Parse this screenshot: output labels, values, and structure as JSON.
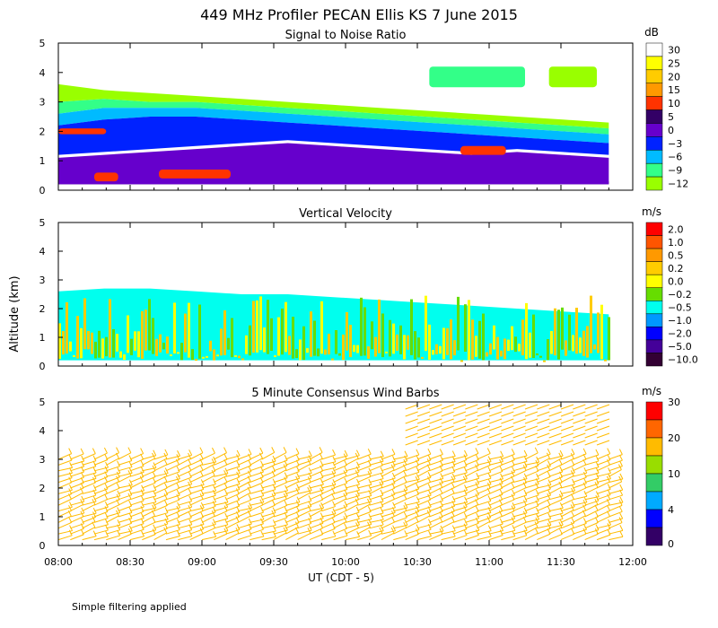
{
  "title": "449 MHz Profiler PECAN Ellis KS  7 June 2015",
  "y_axis_label": "Altitude (km)",
  "x_axis_label": "UT  (CDT - 5)",
  "footnote": "Simple filtering applied",
  "x_ticks": [
    "08:00",
    "08:30",
    "09:00",
    "09:30",
    "10:00",
    "10:30",
    "11:00",
    "11:30",
    "12:00"
  ],
  "y_ticks": [
    "0",
    "1",
    "2",
    "3",
    "4",
    "5"
  ],
  "chart_data": [
    {
      "type": "heatmap",
      "title": "Signal to Noise Ratio",
      "units": "dB",
      "xlim": [
        "08:00",
        "12:00"
      ],
      "ylim": [
        0,
        5
      ],
      "colorbar": {
        "labels": [
          "30",
          "25",
          "20",
          "15",
          "10",
          "5",
          "0",
          "−3",
          "−6",
          "−9",
          "−12"
        ],
        "colors": [
          "#ffffff",
          "#ffff00",
          "#ffcc00",
          "#ff9900",
          "#ff3300",
          "#330066",
          "#6600cc",
          "#0022ff",
          "#00bbff",
          "#33ff88",
          "#99ff00"
        ]
      },
      "layers": [
        {
          "label": "0",
          "from_km": 0.2,
          "to_km_profile": [
            1.1,
            1.2,
            1.3,
            1.4,
            1.5,
            1.6,
            1.5,
            1.4,
            1.3,
            1.2,
            1.3,
            1.2,
            1.1
          ]
        },
        {
          "label": "5",
          "from_km": 0.2,
          "to_km_profile": [
            1.0,
            1.0,
            0.9,
            0.9,
            1.0,
            1.0,
            0.9,
            0.8,
            0.7,
            0.6,
            0.5,
            0.4,
            0.3
          ]
        },
        {
          "label": "-3",
          "from_km_profile": [
            1.2,
            1.3,
            1.4,
            1.5,
            1.6,
            1.7,
            1.6,
            1.5,
            1.4,
            1.3,
            1.4,
            1.3,
            1.2
          ],
          "to_km_profile": [
            2.2,
            2.4,
            2.5,
            2.5,
            2.4,
            2.3,
            2.2,
            2.1,
            2.0,
            1.9,
            1.8,
            1.7,
            1.6
          ]
        },
        {
          "label": "-6",
          "from_km_profile": [
            2.2,
            2.4,
            2.5,
            2.5,
            2.4,
            2.3,
            2.2,
            2.1,
            2.0,
            1.9,
            1.8,
            1.7,
            1.6
          ],
          "to_km_profile": [
            2.6,
            2.8,
            2.8,
            2.8,
            2.7,
            2.6,
            2.5,
            2.4,
            2.3,
            2.2,
            2.1,
            2.0,
            1.9
          ]
        },
        {
          "label": "-9",
          "from_km_profile": [
            2.6,
            2.8,
            2.8,
            2.8,
            2.7,
            2.6,
            2.5,
            2.4,
            2.3,
            2.2,
            2.1,
            2.0,
            1.9
          ],
          "to_km_profile": [
            3.0,
            3.1,
            3.0,
            3.0,
            2.9,
            2.8,
            2.7,
            2.6,
            2.5,
            2.4,
            2.3,
            2.2,
            2.1
          ]
        },
        {
          "label": "-12",
          "from_km_profile": [
            3.0,
            3.1,
            3.0,
            3.0,
            2.9,
            2.8,
            2.7,
            2.6,
            2.5,
            2.4,
            2.3,
            2.2,
            2.1
          ],
          "to_km_profile": [
            3.6,
            3.4,
            3.3,
            3.2,
            3.1,
            3.0,
            2.9,
            2.8,
            2.7,
            2.6,
            2.5,
            2.4,
            2.3
          ]
        }
      ],
      "patches": [
        {
          "label": "10",
          "x0": "08:00",
          "x1": "08:20",
          "y0": 1.9,
          "y1": 2.1
        },
        {
          "label": "10",
          "x0": "08:15",
          "x1": "08:25",
          "y0": 0.3,
          "y1": 0.6
        },
        {
          "label": "10",
          "x0": "08:42",
          "x1": "09:12",
          "y0": 0.4,
          "y1": 0.7
        },
        {
          "label": "10",
          "x0": "10:48",
          "x1": "11:07",
          "y0": 1.2,
          "y1": 1.5
        },
        {
          "label": "-9",
          "x0": "10:35",
          "x1": "11:15",
          "y0": 3.5,
          "y1": 4.2
        },
        {
          "label": "-12",
          "x0": "11:25",
          "x1": "11:45",
          "y0": 3.5,
          "y1": 4.2
        }
      ]
    },
    {
      "type": "heatmap",
      "title": "Vertical Velocity",
      "units": "m/s",
      "xlim": [
        "08:00",
        "12:00"
      ],
      "ylim": [
        0,
        5
      ],
      "colorbar": {
        "labels": [
          "2.0",
          "1.0",
          "0.5",
          "0.2",
          "0.0",
          "−0.2",
          "−0.5",
          "−1.0",
          "−2.0",
          "−5.0",
          "−10.0"
        ],
        "colors": [
          "#ff0000",
          "#ff5500",
          "#ff9900",
          "#ffcc00",
          "#ffff00",
          "#66dd00",
          "#00ffee",
          "#0099ff",
          "#0000ff",
          "#440099",
          "#330033"
        ]
      },
      "layers": [
        {
          "label": "-0.5",
          "from_km": 0.2,
          "to_km_profile": [
            2.6,
            2.7,
            2.7,
            2.6,
            2.5,
            2.5,
            2.4,
            2.3,
            2.2,
            2.1,
            2.0,
            1.9,
            1.8
          ]
        }
      ],
      "streaks": {
        "labels": [
          "0.2",
          "0.0",
          "-0.2"
        ],
        "x0": "08:00",
        "x1": "11:50",
        "y0": 0.2,
        "y1": 2.5
      }
    },
    {
      "type": "scatter",
      "title": "5 Minute Consensus Wind Barbs",
      "units": "m/s",
      "xlim": [
        "08:00",
        "12:00"
      ],
      "ylim": [
        0,
        5
      ],
      "colorbar": {
        "labels": [
          "30",
          "20",
          "10",
          "4",
          "0"
        ],
        "colors": [
          "#ff0000",
          "#ff6600",
          "#ffbb00",
          "#99dd00",
          "#33cc66",
          "#00aaff",
          "#0000ff",
          "#330066"
        ]
      },
      "barbs": {
        "interval_min": 5,
        "altitude_range_km": [
          0.2,
          3.2
        ],
        "dominant_speed_label": "10",
        "upper_layer": {
          "x0": "10:25",
          "x1": "11:45",
          "y0": 3.5,
          "y1": 4.8,
          "speed_label": "10"
        }
      }
    }
  ]
}
